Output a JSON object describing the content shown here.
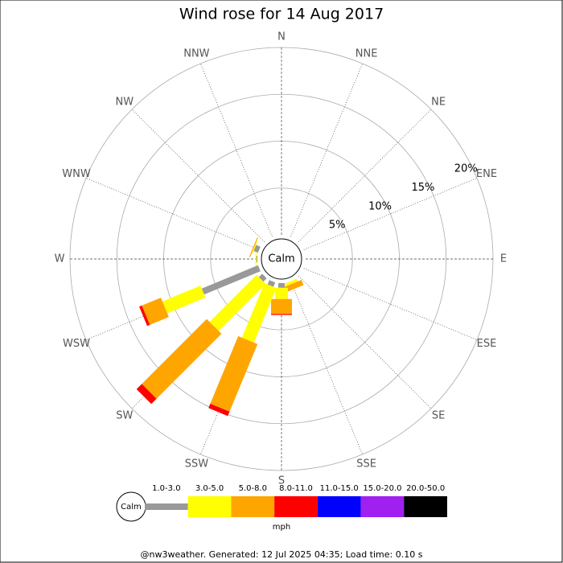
{
  "chart_data": {
    "type": "windrose",
    "title": "Wind rose for 14 Aug 2017",
    "categories": [
      "N",
      "NNE",
      "NE",
      "ENE",
      "E",
      "ESE",
      "SE",
      "SSE",
      "S",
      "SSW",
      "SW",
      "WSW",
      "W",
      "WNW",
      "NW",
      "NNW"
    ],
    "rlim": [
      0,
      20
    ],
    "rticks": [
      {
        "value": 5,
        "label": "5%"
      },
      {
        "value": 10,
        "label": "10%"
      },
      {
        "value": 15,
        "label": "15%"
      },
      {
        "value": 20,
        "label": "20%"
      }
    ],
    "calm_label": "Calm",
    "unit": "mph",
    "series": [
      {
        "name": "1.0-3.0",
        "color": "#999999",
        "values": [
          0,
          0,
          0,
          0,
          0,
          0,
          0,
          0,
          0.5,
          0.5,
          0.5,
          6.5,
          0.1,
          0.5,
          0,
          0
        ]
      },
      {
        "name": "3.0-5.0",
        "color": "#ffff00",
        "values": [
          0,
          0,
          0,
          0,
          0,
          0,
          0,
          0.3,
          1.2,
          6.3,
          7.1,
          4.4,
          0.1,
          0.1,
          0,
          0
        ]
      },
      {
        "name": "5.0-8.0",
        "color": "#ffa500",
        "values": [
          0,
          0,
          0,
          0,
          0,
          0,
          0,
          0.6,
          1.6,
          7.8,
          9.8,
          2.2,
          0,
          0.1,
          0,
          0
        ]
      },
      {
        "name": "8.0-11.0",
        "color": "#ff0000",
        "values": [
          0,
          0,
          0,
          0,
          0,
          0,
          0,
          0,
          0.1,
          0.5,
          0.8,
          0.3,
          0,
          0,
          0,
          0
        ]
      },
      {
        "name": "11.0-15.0",
        "color": "#0000ff",
        "values": [
          0,
          0,
          0,
          0,
          0,
          0,
          0,
          0,
          0,
          0,
          0,
          0,
          0,
          0,
          0,
          0
        ]
      },
      {
        "name": "15.0-20.0",
        "color": "#a020f0",
        "values": [
          0,
          0,
          0,
          0,
          0,
          0,
          0,
          0,
          0,
          0,
          0,
          0,
          0,
          0,
          0,
          0
        ]
      },
      {
        "name": "20.0-50.0",
        "color": "#000000",
        "values": [
          0,
          0,
          0,
          0,
          0,
          0,
          0,
          0,
          0,
          0,
          0,
          0,
          0,
          0,
          0,
          0
        ]
      }
    ],
    "footer": "@nw3weather. Generated: 12 Jul 2025 04:35; Load time: 0.10 s"
  }
}
